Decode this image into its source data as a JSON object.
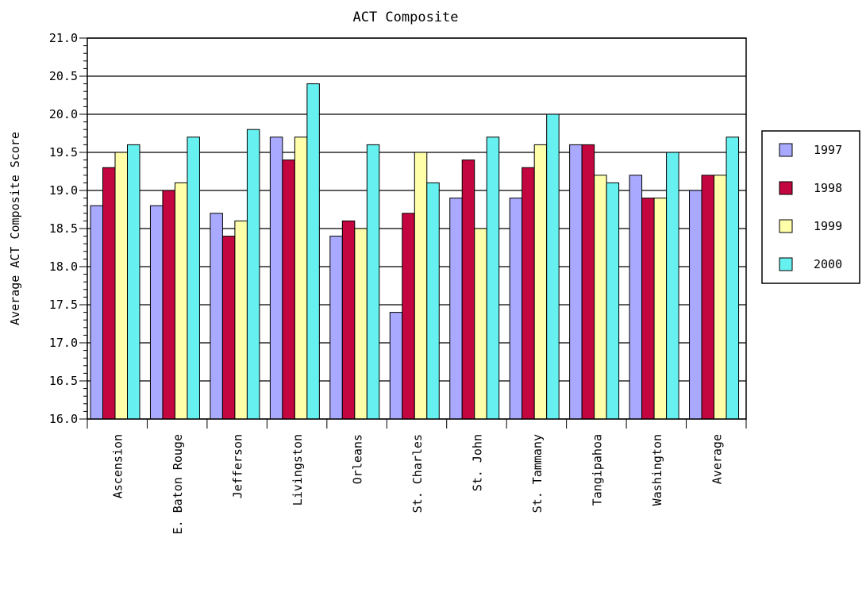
{
  "chart_data": {
    "type": "bar",
    "title": "ACT Composite",
    "xlabel": "",
    "ylabel": "Average ACT Composite Score",
    "ylim": [
      16.0,
      21.0
    ],
    "yticks": [
      "16.0",
      "16.5",
      "17.0",
      "17.5",
      "18.0",
      "18.5",
      "19.0",
      "19.5",
      "20.0",
      "20.5",
      "21.0"
    ],
    "grid": true,
    "legend_position": "right",
    "categories": [
      "Ascension",
      "E. Baton Rouge",
      "Jefferson",
      "Livingston",
      "Orleans",
      "St. Charles",
      "St. John",
      "St. Tammany",
      "Tangipahoa",
      "Washington",
      "Average"
    ],
    "series": [
      {
        "name": "1997",
        "color": "#a9a9ff",
        "values": [
          18.8,
          18.8,
          18.7,
          19.7,
          18.4,
          17.4,
          18.9,
          18.9,
          19.6,
          19.2,
          19.0
        ]
      },
      {
        "name": "1998",
        "color": "#c3063f",
        "values": [
          19.3,
          19.0,
          18.4,
          19.4,
          18.6,
          18.7,
          19.4,
          19.3,
          19.6,
          18.9,
          19.2
        ]
      },
      {
        "name": "1999",
        "color": "#ffffaa",
        "values": [
          19.5,
          19.1,
          18.6,
          19.7,
          18.5,
          19.5,
          18.5,
          19.6,
          19.2,
          18.9,
          19.2
        ]
      },
      {
        "name": "2000",
        "color": "#66f0f0",
        "values": [
          19.6,
          19.7,
          19.8,
          20.4,
          19.6,
          19.1,
          19.7,
          20.0,
          19.1,
          19.5,
          19.7
        ]
      }
    ]
  }
}
